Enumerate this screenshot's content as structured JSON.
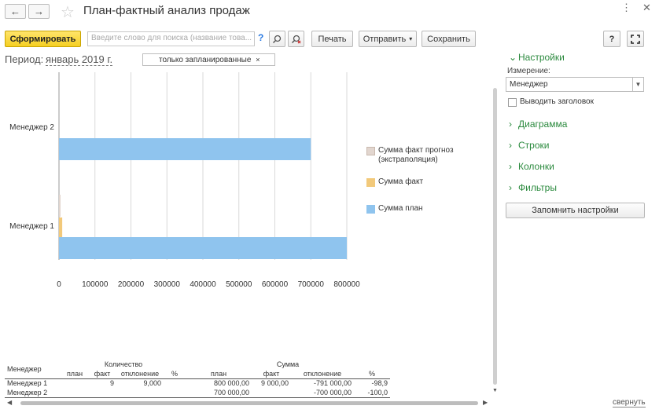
{
  "window": {
    "title": "План-фактный анализ продаж",
    "back_icon": "←",
    "forward_icon": "→",
    "star_icon": "☆",
    "more_icon": "⋮",
    "close_icon": "✕"
  },
  "toolbar": {
    "generate_label": "Сформировать",
    "search_placeholder": "Введите слово для поиска (название това...",
    "help_mark": "?",
    "print_label": "Печать",
    "send_label": "Отправить",
    "send_arrow": "▾",
    "save_label": "Сохранить",
    "help_label": "?",
    "fullscreen_icon": "⛶"
  },
  "period": {
    "label": "Период:",
    "value": "январь 2019 г.",
    "filter": "только запланированные",
    "filter_close": "×"
  },
  "chart_data": {
    "type": "bar",
    "orientation": "horizontal",
    "categories": [
      "Менеджер 1",
      "Менеджер 2"
    ],
    "series": [
      {
        "name": "Сумма факт прогноз (экстраполяция)",
        "color": "#e2d6cf",
        "values": [
          3000,
          0
        ]
      },
      {
        "name": "Сумма факт",
        "color": "#f2c97a",
        "values": [
          9000,
          0
        ]
      },
      {
        "name": "Сумма план",
        "color": "#8fc4ee",
        "values": [
          800000,
          700000
        ]
      }
    ],
    "xlim": [
      0,
      800000
    ],
    "xticks": [
      "0",
      "100000",
      "200000",
      "300000",
      "400000",
      "500000",
      "600000",
      "700000",
      "800000"
    ],
    "grid": true,
    "legend": "right"
  },
  "legend": [
    {
      "label": "Сумма факт прогноз (экстраполяция)",
      "color": "#e2d6cf"
    },
    {
      "label": "Сумма факт",
      "color": "#f2c97a"
    },
    {
      "label": "Сумма план",
      "color": "#8fc4ee"
    }
  ],
  "table": {
    "header_manager": "Менеджер",
    "group_quantity": "Количество",
    "group_sum": "Сумма",
    "col_plan": "план",
    "col_fact": "факт",
    "col_dev": "отклонение",
    "col_pct": "%",
    "rows": [
      {
        "name": "Менеджер 1",
        "q_plan": "",
        "q_fact": "9",
        "q_dev": "9,000",
        "q_pct": "",
        "s_plan": "800 000,00",
        "s_fact": "9 000,00",
        "s_dev": "-791 000,00",
        "s_pct": "-98,9"
      },
      {
        "name": "Менеджер 2",
        "q_plan": "",
        "q_fact": "",
        "q_dev": "",
        "q_pct": "",
        "s_plan": "700 000,00",
        "s_fact": "",
        "s_dev": "-700 000,00",
        "s_pct": "-100,0"
      }
    ]
  },
  "settings": {
    "title": "Настройки",
    "dimension_label": "Измерение:",
    "dimension_value": "Менеджер",
    "show_header_label": "Выводить заголовок",
    "show_header_checked": false,
    "sections": [
      "Диаграмма",
      "Строки",
      "Колонки",
      "Фильтры"
    ],
    "remember_label": "Запомнить настройки",
    "collapse_label": "свернуть"
  }
}
